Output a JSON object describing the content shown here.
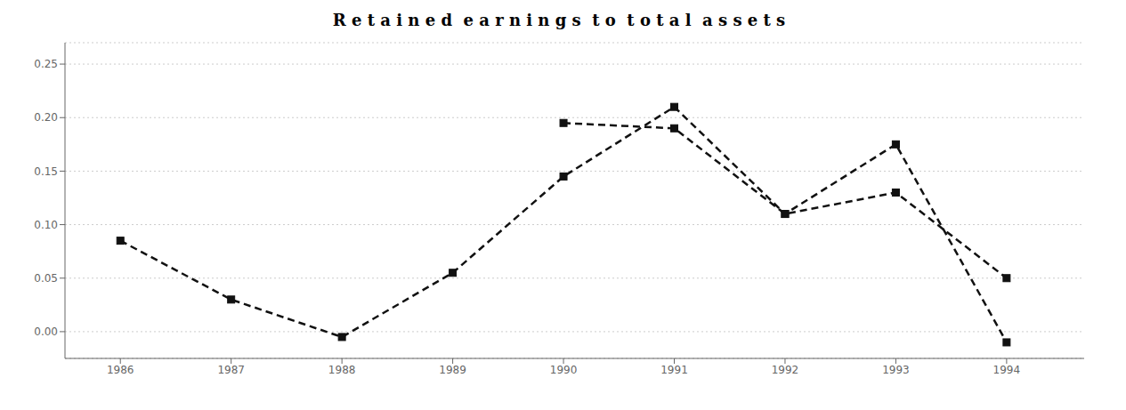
{
  "chart_data": {
    "type": "line",
    "title": "R e t a i n e d  e a r n i n g s  t o  t o t a l  a s s e t s",
    "x": [
      1986,
      1987,
      1988,
      1989,
      1990,
      1991,
      1992,
      1993,
      1994
    ],
    "series": [
      {
        "color": "#111111",
        "marker": "square",
        "line_style": "dashed",
        "values": [
          0.085,
          0.03,
          -0.005,
          0.055,
          0.145,
          0.21,
          0.11,
          0.175,
          -0.01
        ]
      },
      {
        "color": "#111111",
        "marker": "square",
        "line_style": "dashed",
        "values": [
          null,
          null,
          null,
          null,
          0.195,
          0.19,
          0.11,
          0.13,
          0.05
        ]
      }
    ],
    "xlim": [
      1985.5,
      1994.7
    ],
    "xticks": [
      1986,
      1987,
      1988,
      1989,
      1990,
      1991,
      1992,
      1993,
      1994
    ],
    "ylim": [
      -0.025,
      0.27
    ],
    "yticks": [
      {
        "value": 0,
        "label": "0.00"
      },
      0.05,
      {
        "value": 0.1,
        "label": "0.10"
      },
      0.15,
      {
        "value": 0.2,
        "label": "0.20"
      },
      0.25
    ],
    "grid": true
  }
}
